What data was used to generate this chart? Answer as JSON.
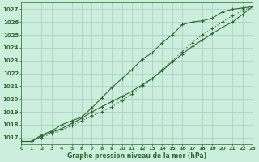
{
  "title": "Graphe pression niveau de la mer (hPa)",
  "bg_color": "#cceedd",
  "grid_color": "#aacccc",
  "line_color": "#2d6b2d",
  "x_min": 0,
  "x_max": 23,
  "y_min": 1016.5,
  "y_max": 1027.5,
  "yticks": [
    1017,
    1018,
    1019,
    1020,
    1021,
    1022,
    1023,
    1024,
    1025,
    1026,
    1027
  ],
  "series1_x": [
    0,
    1,
    2,
    3,
    4,
    5,
    6,
    7,
    8,
    9,
    10,
    11,
    12,
    13,
    14,
    15,
    16,
    17,
    18,
    19,
    20,
    21,
    22,
    23
  ],
  "series1_y": [
    1016.7,
    1016.7,
    1017.1,
    1017.4,
    1017.7,
    1018.1,
    1018.5,
    1019.0,
    1019.4,
    1019.8,
    1020.2,
    1020.6,
    1021.1,
    1021.6,
    1022.2,
    1022.9,
    1023.5,
    1024.1,
    1024.6,
    1025.1,
    1025.6,
    1026.0,
    1026.6,
    1027.2
  ],
  "series2_x": [
    0,
    1,
    2,
    3,
    4,
    5,
    6,
    7,
    8,
    9,
    10,
    11,
    12,
    13,
    14,
    15,
    16,
    17,
    18,
    19,
    20,
    21,
    22,
    23
  ],
  "series2_y": [
    1016.7,
    1016.7,
    1017.2,
    1017.5,
    1018.0,
    1018.3,
    1018.6,
    1019.3,
    1020.1,
    1020.9,
    1021.6,
    1022.3,
    1023.1,
    1023.6,
    1024.4,
    1025.0,
    1025.8,
    1026.0,
    1026.1,
    1026.3,
    1026.8,
    1027.0,
    1027.1,
    1027.2
  ],
  "series3_x": [
    0,
    1,
    2,
    3,
    4,
    5,
    6,
    7,
    8,
    9,
    10,
    11,
    12,
    13,
    14,
    15,
    16,
    17,
    18,
    19,
    20,
    21,
    22,
    23
  ],
  "series3_y": [
    1016.7,
    1016.7,
    1017.0,
    1017.3,
    1017.6,
    1017.9,
    1018.3,
    1018.7,
    1019.0,
    1019.4,
    1019.9,
    1020.4,
    1021.0,
    1021.6,
    1022.3,
    1023.0,
    1023.7,
    1024.4,
    1025.0,
    1025.5,
    1026.0,
    1026.5,
    1026.9,
    1027.2
  ],
  "marker": "+",
  "marker_size": 3,
  "linewidth": 0.8
}
